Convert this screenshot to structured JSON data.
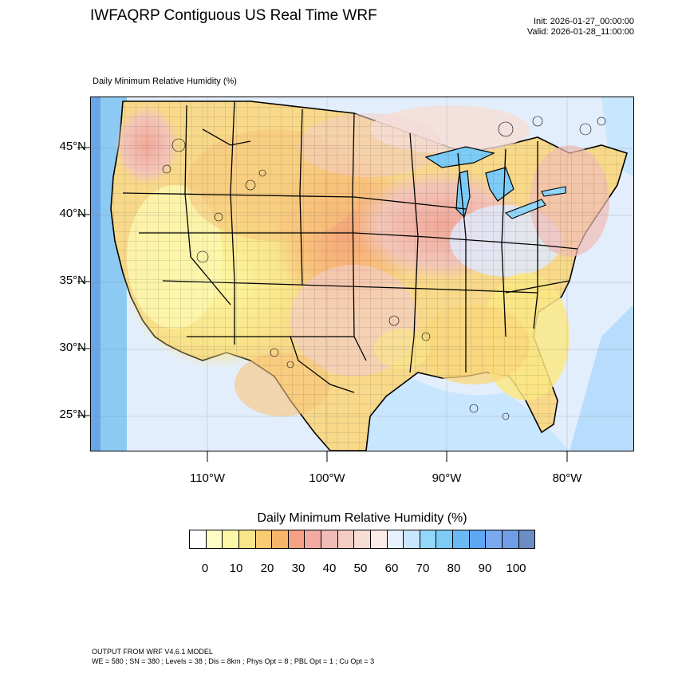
{
  "title": "IWFAQRP Contiguous US Real Time WRF",
  "init": "Init: 2026-01-27_00:00:00",
  "valid": "Valid: 2026-01-28_11:00:00",
  "subtitle": "Daily Minimum Relative Humidity   (%)",
  "map": {
    "lat_labels": [
      "45°N",
      "40°N",
      "35°N",
      "30°N",
      "25°N"
    ],
    "lon_labels": [
      "110°W",
      "100°W",
      "90°W",
      "80°W"
    ]
  },
  "colorbar": {
    "title": "Daily Minimum Relative Humidity  (%)",
    "labels": [
      "0",
      "10",
      "20",
      "30",
      "40",
      "50",
      "60",
      "70",
      "80",
      "90",
      "100"
    ],
    "colors": [
      "#ffffff",
      "#fdfdc7",
      "#fbf7a6",
      "#f9e58a",
      "#f9cc73",
      "#f8b469",
      "#f6a186",
      "#f2aaa3",
      "#f1bcb6",
      "#f3cdc4",
      "#f6ddd6",
      "#fbece9",
      "#e8f1ff",
      "#c9e6ff",
      "#93d7fa",
      "#7dccf8",
      "#6bbaf5",
      "#5ea7f2",
      "#7aa9f0",
      "#6f9ee6",
      "#6c8dc4"
    ]
  },
  "footer": {
    "line1": "OUTPUT FROM WRF V4.6.1 MODEL",
    "line2": "WE = 580 ; SN = 380 ; Levels = 38 ; Dis = 8km ; Phys Opt = 8 ; PBL Opt = 1 ; Cu Opt = 3"
  }
}
